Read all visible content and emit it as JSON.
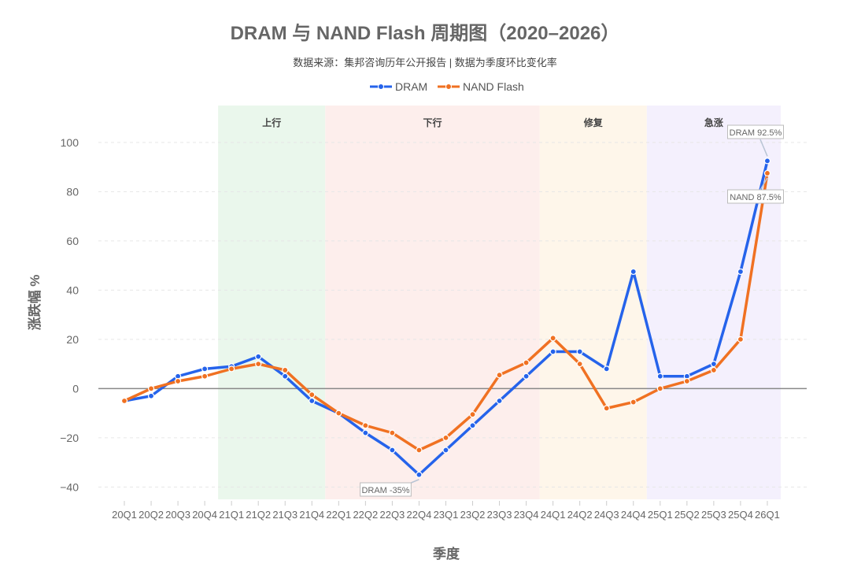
{
  "chart_data": {
    "type": "line",
    "title": "DRAM 与 NAND Flash 周期图（2020–2026）",
    "subtitle": "数据来源：集邦咨询历年公开报告 | 数据为季度环比变化率",
    "xlabel": "季度",
    "ylabel": "涨跌幅 %",
    "ylim": [
      -45,
      115
    ],
    "yticks": [
      -40,
      -20,
      0,
      20,
      40,
      60,
      80,
      100
    ],
    "grid": true,
    "legend_position": "top-center",
    "categories": [
      "20Q1",
      "20Q2",
      "20Q3",
      "20Q4",
      "21Q1",
      "21Q2",
      "21Q3",
      "21Q4",
      "22Q1",
      "22Q2",
      "22Q3",
      "22Q4",
      "23Q1",
      "23Q2",
      "23Q3",
      "23Q4",
      "24Q1",
      "24Q2",
      "24Q3",
      "24Q4",
      "25Q1",
      "25Q2",
      "25Q3",
      "25Q4",
      "26Q1"
    ],
    "series": [
      {
        "name": "DRAM",
        "color": "#2563EB",
        "values": [
          -5,
          -3,
          5,
          8,
          9,
          13,
          5,
          -5,
          -10,
          -18,
          -25,
          -35,
          -25,
          -15,
          -5,
          5,
          15,
          15,
          8,
          47.5,
          5,
          5,
          10,
          47.5,
          92.5
        ]
      },
      {
        "name": "NAND Flash",
        "color": "#F07122",
        "values": [
          -5,
          0,
          3,
          5,
          8,
          10,
          7.5,
          -2.5,
          -10,
          -15,
          -18,
          -25,
          -20,
          -10.5,
          5.5,
          10.5,
          20.5,
          10,
          -8,
          -5.5,
          0,
          3,
          7.5,
          20,
          87.5
        ]
      }
    ],
    "phases": [
      {
        "label": "上行",
        "start": 3.5,
        "end": 7.5,
        "color": "#EAF7EC"
      },
      {
        "label": "下行",
        "start": 7.5,
        "end": 15.5,
        "color": "#FDEEEC"
      },
      {
        "label": "修复",
        "start": 15.5,
        "end": 19.5,
        "color": "#FEF6EA"
      },
      {
        "label": "急涨",
        "start": 19.5,
        "end": 24.5,
        "color": "#F4F0FD"
      }
    ],
    "annotations": [
      {
        "text": "DRAM -35%",
        "series": 0,
        "index": 11
      },
      {
        "text": "DRAM 92.5%",
        "series": 0,
        "index": 24
      },
      {
        "text": "NAND 87.5%",
        "series": 1,
        "index": 24
      }
    ]
  }
}
